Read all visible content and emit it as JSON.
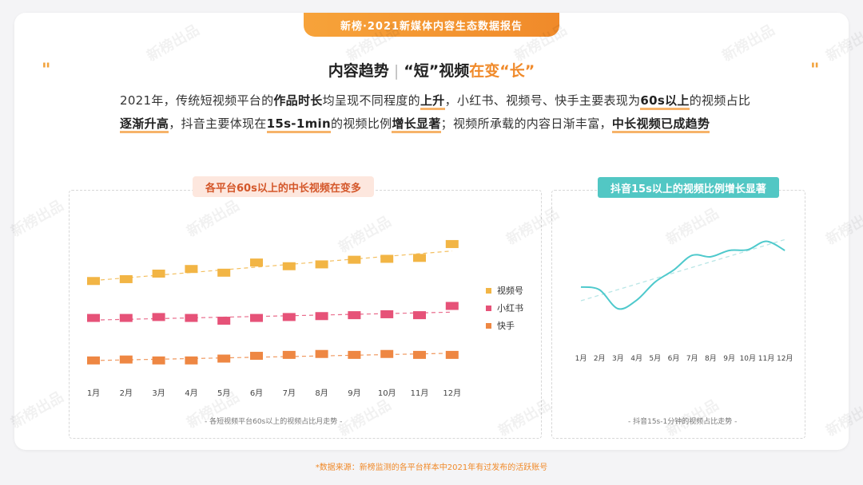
{
  "header": {
    "banner": "新榜·2021新媒体内容生态数据报告",
    "title_part1": "内容趋势",
    "title_part2": "“短”视频",
    "title_part3": "在变“长”",
    "quote_left": "\"",
    "quote_right": "\""
  },
  "description": {
    "s1": "2021年，传统短视频平台的",
    "b1": "作品时长",
    "s2": "均呈现不同程度的",
    "b2": "上升",
    "s3": "，小红书、视频号、快手主要表现为",
    "b3": "60s以上",
    "s4": "的视频占比",
    "b4": "逐渐升高",
    "s5": "，抖音主要体现在",
    "b5": "15s-1min",
    "s6": "的视频比例",
    "b6": "增长显著",
    "s7": "；视频所承载的内容日渐丰富，",
    "b7": "中长视频已成趋势"
  },
  "colors": {
    "accent": "#f08a2a",
    "shipinhao": "#f2b545",
    "xiaohongshu": "#e65278",
    "kuaishou": "#ee8743",
    "douyin": "#4ec9cc"
  },
  "chart_data": [
    {
      "type": "line",
      "title": "各平台60s以上的中长视频在变多",
      "caption": "- 各短视频平台60s以上的视频占比月走势 -",
      "categories": [
        "1月",
        "2月",
        "3月",
        "4月",
        "5月",
        "6月",
        "7月",
        "8月",
        "9月",
        "10月",
        "11月",
        "12月"
      ],
      "series": [
        {
          "name": "视频号",
          "values": [
            8.6,
            8.8,
            9.4,
            9.9,
            9.5,
            10.6,
            10.2,
            10.4,
            10.9,
            11.0,
            11.1,
            12.6
          ]
        },
        {
          "name": "小红书",
          "values": [
            4.6,
            4.6,
            4.7,
            4.6,
            4.3,
            4.6,
            4.7,
            4.8,
            4.9,
            5.0,
            4.9,
            5.9
          ]
        },
        {
          "name": "快手",
          "values": [
            0.0,
            0.1,
            0.0,
            0.0,
            0.2,
            0.5,
            0.6,
            0.7,
            0.6,
            0.7,
            0.6,
            0.6
          ]
        }
      ],
      "trendlines": true,
      "ylim": [
        -2,
        17
      ],
      "y_axis_visible": false,
      "legend": "right",
      "grid": false
    },
    {
      "type": "line",
      "title": "抖音15s以上的视频比例增长显著",
      "caption": "- 抖音15s-1分钟的视频占比走势 -",
      "categories": [
        "1月",
        "2月",
        "3月",
        "4月",
        "5月",
        "6月",
        "7月",
        "8月",
        "9月",
        "10月",
        "11月",
        "12月"
      ],
      "series": [
        {
          "values": [
            5.1,
            4.7,
            2.0,
            3.2,
            5.8,
            7.5,
            9.6,
            9.4,
            10.3,
            10.4,
            11.6,
            10.3
          ]
        }
      ],
      "trendlines": true,
      "ylim": [
        -8,
        17
      ],
      "y_axis_visible": false,
      "legend": "none",
      "grid": false
    }
  ],
  "footnote": "*数据来源：新榜监测的各平台样本中2021年有过发布的活跃账号",
  "watermark": "新榜出品"
}
